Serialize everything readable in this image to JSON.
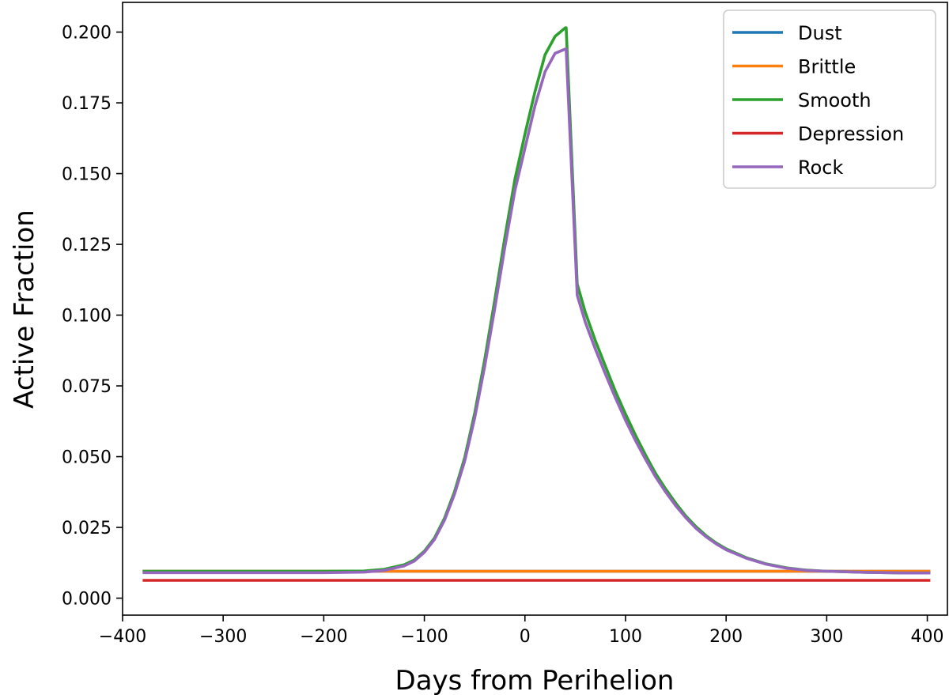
{
  "chart_data": {
    "type": "line",
    "title": "",
    "xlabel": "Days from Perihelion",
    "ylabel": "Active Fraction",
    "xlim": [
      -400,
      420
    ],
    "ylim": [
      -0.006,
      0.2105
    ],
    "xticks": [
      -400,
      -300,
      -200,
      -100,
      0,
      100,
      200,
      300,
      400
    ],
    "xtick_labels": [
      "−400",
      "−300",
      "−200",
      "−100",
      "0",
      "100",
      "200",
      "300",
      "400"
    ],
    "yticks": [
      0.0,
      0.025,
      0.05,
      0.075,
      0.1,
      0.125,
      0.15,
      0.175,
      0.2
    ],
    "ytick_labels": [
      "0.000",
      "0.025",
      "0.050",
      "0.075",
      "0.100",
      "0.125",
      "0.150",
      "0.175",
      "0.200"
    ],
    "grid": false,
    "legend_position": "top-right",
    "series": [
      {
        "name": "Dust",
        "color": "#1f77b4",
        "x": [
          -380,
          403
        ],
        "y": [
          0.0095,
          0.0095
        ]
      },
      {
        "name": "Brittle",
        "color": "#ff7f0e",
        "x": [
          -380,
          403
        ],
        "y": [
          0.0095,
          0.0095
        ]
      },
      {
        "name": "Smooth",
        "color": "#2ca02c",
        "x": [
          -380,
          -200,
          -160,
          -140,
          -120,
          -110,
          -100,
          -90,
          -80,
          -70,
          -60,
          -50,
          -40,
          -30,
          -20,
          -10,
          0,
          10,
          20,
          30,
          40,
          41,
          52,
          60,
          70,
          80,
          90,
          100,
          110,
          120,
          130,
          140,
          150,
          160,
          170,
          180,
          190,
          200,
          220,
          240,
          260,
          280,
          300,
          320,
          340,
          360,
          380,
          403
        ],
        "y": [
          0.0095,
          0.0095,
          0.0096,
          0.0102,
          0.0118,
          0.0135,
          0.0166,
          0.0212,
          0.0282,
          0.0376,
          0.0495,
          0.0653,
          0.0843,
          0.1053,
          0.1273,
          0.148,
          0.164,
          0.179,
          0.192,
          0.1985,
          0.2015,
          0.2015,
          0.111,
          0.101,
          0.091,
          0.082,
          0.073,
          0.065,
          0.0575,
          0.0505,
          0.044,
          0.0385,
          0.0335,
          0.029,
          0.0253,
          0.0221,
          0.0195,
          0.0174,
          0.0143,
          0.0121,
          0.0107,
          0.0099,
          0.0095,
          0.0093,
          0.0091,
          0.009,
          0.0089,
          0.0089
        ]
      },
      {
        "name": "Depression",
        "color": "#d62728",
        "x": [
          -380,
          403
        ],
        "y": [
          0.0063,
          0.0063
        ]
      },
      {
        "name": "Rock",
        "color": "#9467bd",
        "x": [
          -380,
          -200,
          -160,
          -140,
          -120,
          -110,
          -100,
          -90,
          -80,
          -70,
          -60,
          -50,
          -40,
          -30,
          -20,
          -10,
          0,
          10,
          20,
          30,
          40,
          41,
          52,
          60,
          70,
          80,
          90,
          100,
          110,
          120,
          130,
          140,
          150,
          160,
          170,
          180,
          190,
          200,
          220,
          240,
          260,
          280,
          300,
          320,
          340,
          360,
          380,
          403
        ],
        "y": [
          0.009,
          0.009,
          0.0092,
          0.0098,
          0.0114,
          0.0131,
          0.0162,
          0.0207,
          0.0275,
          0.0367,
          0.0483,
          0.0636,
          0.0819,
          0.1023,
          0.1239,
          0.144,
          0.159,
          0.174,
          0.186,
          0.1925,
          0.194,
          0.194,
          0.107,
          0.0975,
          0.088,
          0.0792,
          0.0707,
          0.0628,
          0.0556,
          0.049,
          0.0428,
          0.0374,
          0.0326,
          0.0284,
          0.0247,
          0.0217,
          0.0192,
          0.0171,
          0.0141,
          0.012,
          0.0106,
          0.0098,
          0.0095,
          0.0093,
          0.0091,
          0.009,
          0.0089,
          0.0089
        ]
      }
    ]
  }
}
